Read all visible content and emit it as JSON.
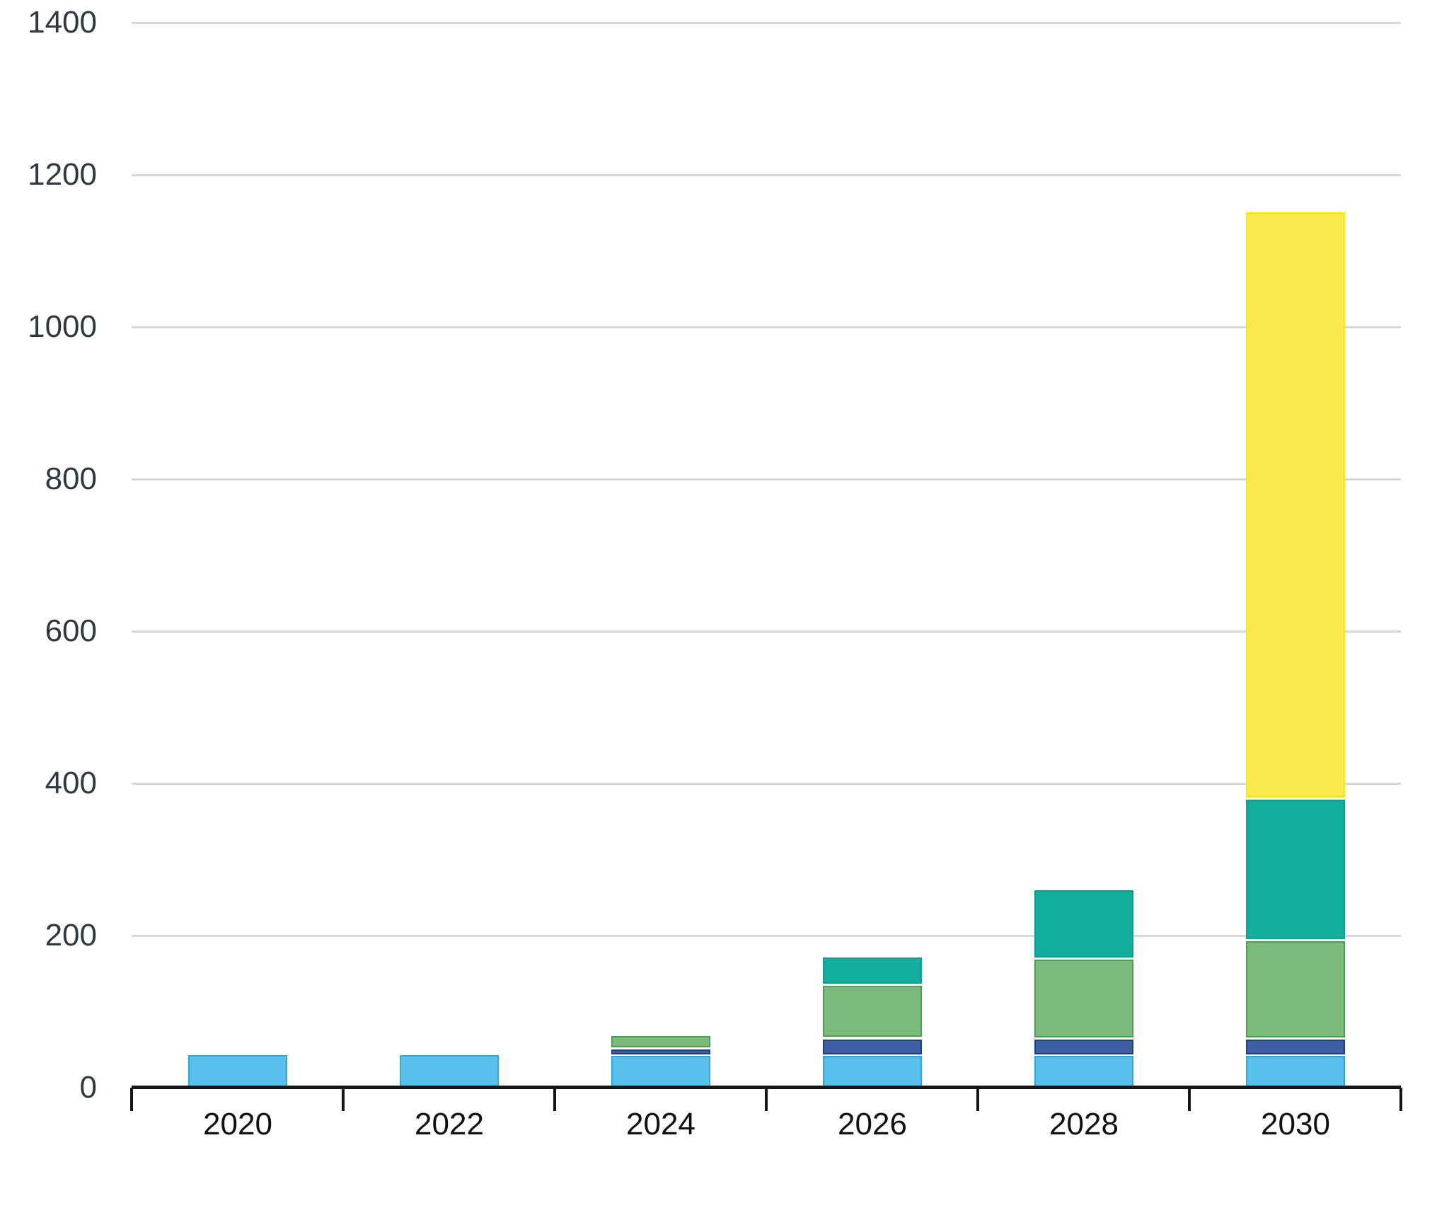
{
  "chart_data": {
    "type": "bar",
    "stacked": true,
    "title": "",
    "xlabel": "",
    "ylabel": "",
    "categories": [
      "2020",
      "2022",
      "2024",
      "2026",
      "2028",
      "2030"
    ],
    "series": [
      {
        "name": "light-blue-segment",
        "key": "light_blue",
        "color": "#58C1EB",
        "border_color": "#2EA9DD",
        "values": [
          43,
          43,
          43,
          43,
          43,
          43
        ]
      },
      {
        "name": "dark-blue-segment",
        "key": "dark_blue",
        "color": "#3D60A5",
        "border_color": "#1F3F7D",
        "values": [
          0,
          0,
          9,
          22,
          22,
          22
        ]
      },
      {
        "name": "green-segment",
        "key": "green",
        "color": "#7ABA7B",
        "border_color": "#4E9D52",
        "values": [
          0,
          0,
          16,
          70,
          105,
          129
        ]
      },
      {
        "name": "teal-segment",
        "key": "teal",
        "color": "#10AE9D",
        "border_color": "#07A090",
        "values": [
          0,
          0,
          0,
          36,
          90,
          186
        ]
      },
      {
        "name": "yellow-segment",
        "key": "yellow",
        "color": "#F8E94E",
        "border_color": "#FFE700",
        "values": [
          0,
          0,
          0,
          0,
          0,
          771
        ]
      }
    ],
    "stack_totals": [
      43,
      43,
      68,
      171,
      260,
      1151
    ],
    "y_tick_labels": [
      "0",
      "200",
      "400",
      "600",
      "800",
      "1000",
      "1200",
      "1400"
    ],
    "y_ticks": [
      0,
      200,
      400,
      600,
      800,
      1000,
      1200,
      1400
    ],
    "ylim": [
      0,
      1400
    ],
    "grid": true,
    "legend": "none",
    "colors": {
      "gridline": "#d8d8d8",
      "axis": "#161616",
      "y_label_text": "#2e3a40",
      "x_label_text": "#101010",
      "background": "#ffffff"
    }
  }
}
